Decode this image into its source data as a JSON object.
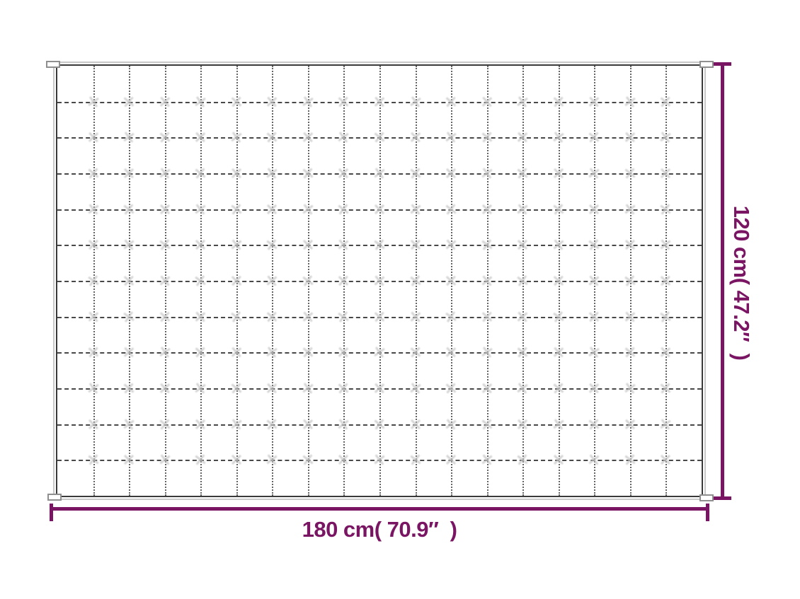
{
  "figure": {
    "type": "product-dimension-diagram",
    "subject": "quilted blanket top view",
    "width_label": "180 cm( 70.9″  )",
    "height_label": "120 cm( 47.2″  )",
    "grid": {
      "columns": 18,
      "rows": 12
    },
    "colors": {
      "accent": "#7a1563",
      "blanket_outline": "#3a3a3a",
      "edge_band": "#c9c9c9",
      "vertical_stitch_line": "#4a4a4a",
      "horizontal_stitch_line": "#353535",
      "tuft_mark": "#c6c6c6",
      "background": "#ffffff"
    }
  }
}
